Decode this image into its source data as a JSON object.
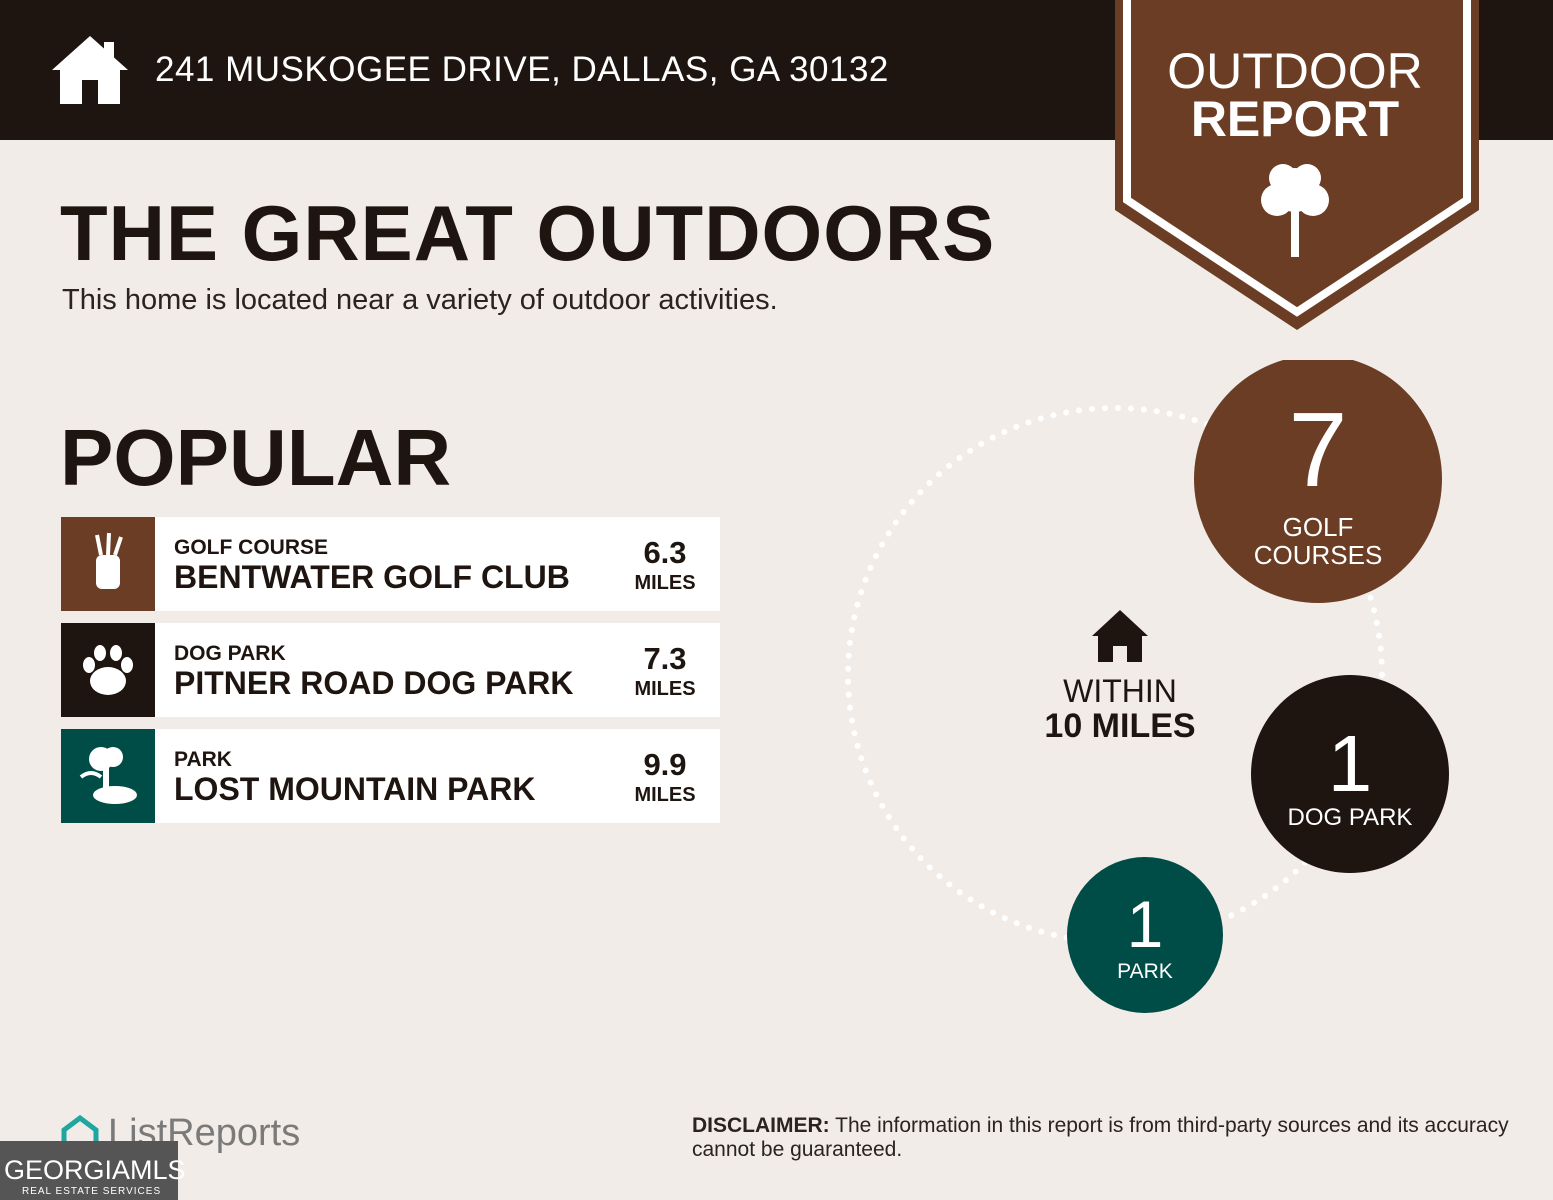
{
  "header": {
    "address": "241 MUSKOGEE DRIVE, DALLAS, GA 30132"
  },
  "badge": {
    "line1": "OUTDOOR",
    "line2": "REPORT"
  },
  "title": "THE GREAT OUTDOORS",
  "subtitle": "This home is located near a variety of outdoor activities.",
  "section": "POPULAR",
  "items": [
    {
      "category": "GOLF COURSE",
      "name": "BENTWATER GOLF CLUB",
      "distance": 6.3,
      "unit": "MILES"
    },
    {
      "category": "DOG PARK",
      "name": "PITNER ROAD DOG PARK",
      "distance": 7.3,
      "unit": "MILES"
    },
    {
      "category": "PARK",
      "name": "LOST MOUNTAIN PARK",
      "distance": 9.9,
      "unit": "MILES"
    }
  ],
  "radius": {
    "line1": "WITHIN",
    "line2": "10 MILES"
  },
  "counts": [
    {
      "count": 7,
      "label": [
        "GOLF",
        "COURSES"
      ]
    },
    {
      "count": 1,
      "label": [
        "DOG PARK"
      ]
    },
    {
      "count": 1,
      "label": [
        "PARK"
      ]
    }
  ],
  "footer": {
    "brand": "ListReports",
    "disclaimer_label": "DISCLAIMER:",
    "disclaimer": "The information in this report is from third-party sources and its accuracy cannot be guaranteed.",
    "mls": "GEORGIAMLS",
    "mls_sub": "REAL ESTATE SERVICES"
  }
}
